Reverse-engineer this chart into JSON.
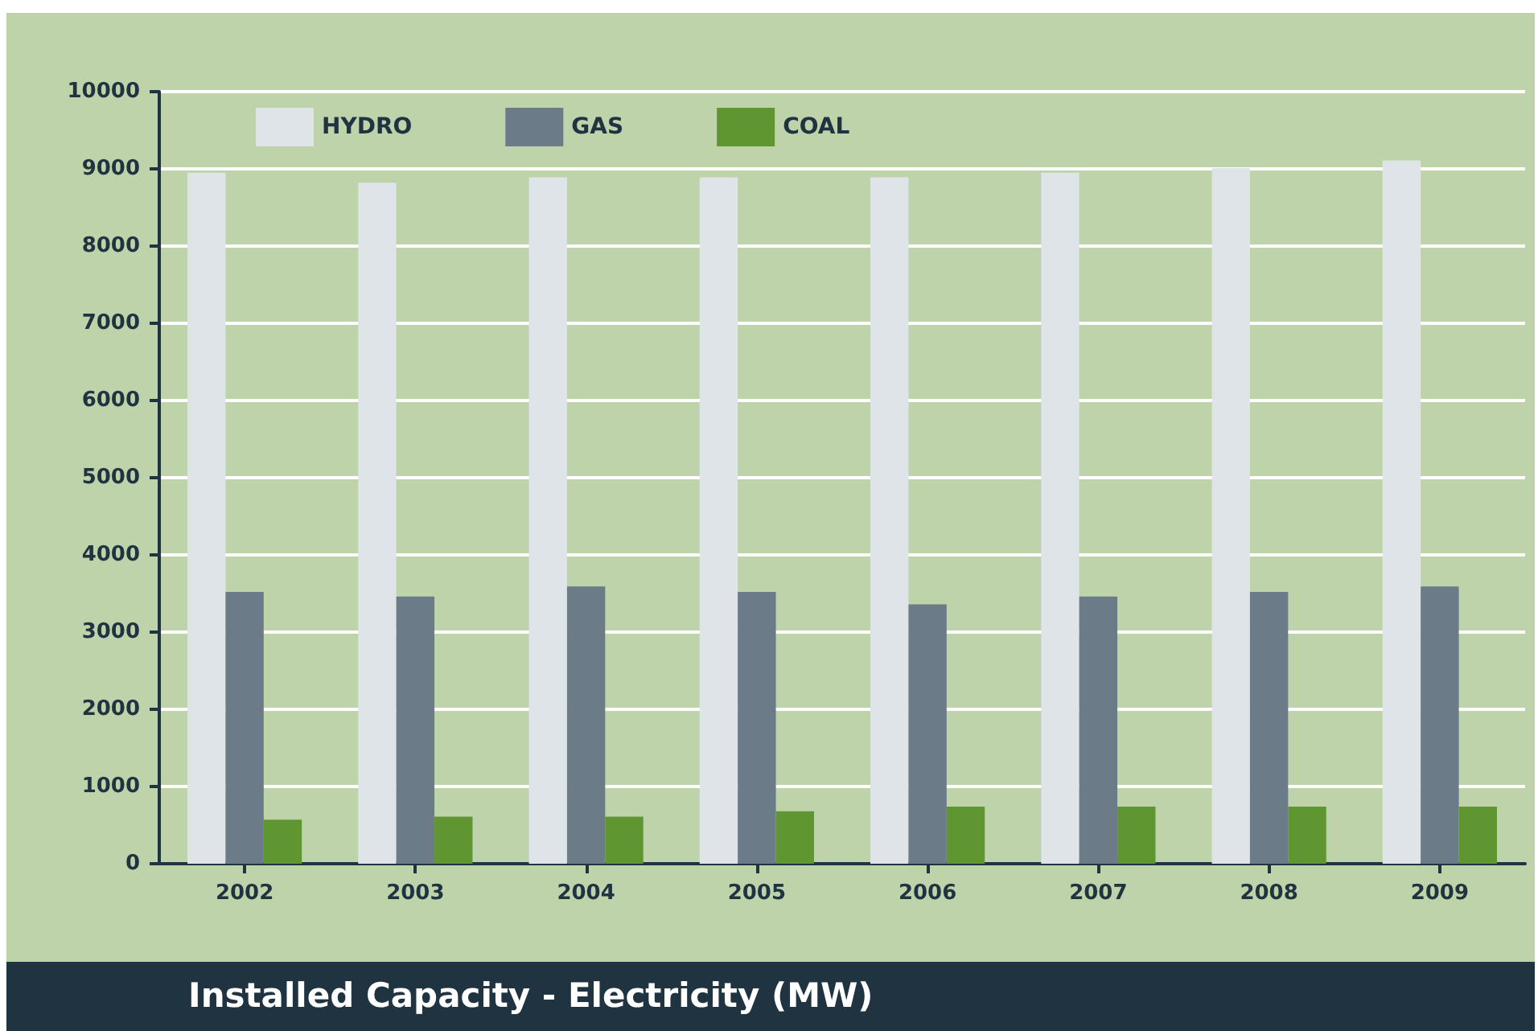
{
  "chart_data": {
    "type": "bar",
    "title": "Installed Capacity - Electricity (MW)",
    "categories": [
      "2002",
      "2003",
      "2004",
      "2005",
      "2006",
      "2007",
      "2008",
      "2009"
    ],
    "series": [
      {
        "name": "HYDRO",
        "color": "#dfe4e8",
        "values": [
          8950,
          8820,
          8890,
          8890,
          8890,
          8950,
          9010,
          9110
        ]
      },
      {
        "name": "GAS",
        "color": "#6b7b88",
        "values": [
          3520,
          3460,
          3590,
          3520,
          3360,
          3460,
          3520,
          3590
        ]
      },
      {
        "name": "COAL",
        "color": "#5f9631",
        "values": [
          570,
          610,
          610,
          680,
          740,
          740,
          740,
          740
        ]
      }
    ],
    "ylim": [
      0,
      10000
    ],
    "yticks": [
      0,
      1000,
      2000,
      3000,
      4000,
      5000,
      6000,
      7000,
      8000,
      9000,
      10000
    ],
    "grid": "y",
    "legend": "top left"
  }
}
